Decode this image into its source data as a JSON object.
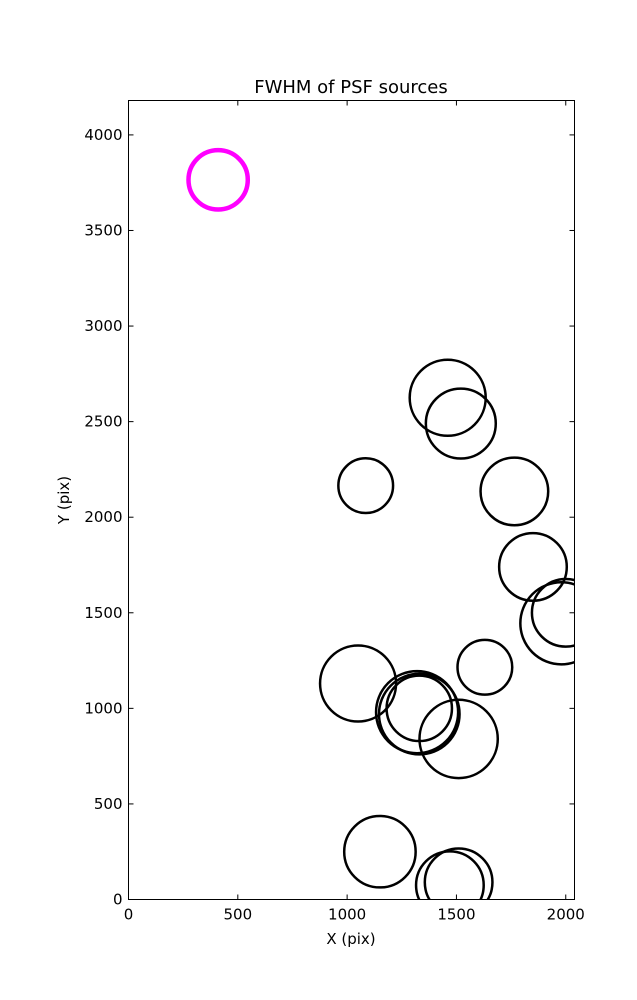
{
  "chart_data": {
    "type": "scatter",
    "title": "FWHM of PSF sources",
    "xlabel": "X (pix)",
    "ylabel": "Y (pix)",
    "xlim": [
      0,
      2040
    ],
    "ylim": [
      0,
      4180
    ],
    "xticks": [
      0,
      500,
      1000,
      1500,
      2000
    ],
    "yticks": [
      0,
      500,
      1000,
      1500,
      2000,
      2500,
      3000,
      3500,
      4000
    ],
    "grid": false,
    "sources": [
      {
        "x": 1460,
        "y": 2625,
        "size": 1.0
      },
      {
        "x": 1520,
        "y": 2490,
        "size": 0.92
      },
      {
        "x": 1085,
        "y": 2165,
        "size": 0.72
      },
      {
        "x": 1765,
        "y": 2135,
        "size": 0.89
      },
      {
        "x": 1850,
        "y": 1740,
        "size": 0.89
      },
      {
        "x": 2000,
        "y": 1500,
        "size": 0.89
      },
      {
        "x": 1980,
        "y": 1445,
        "size": 1.08
      },
      {
        "x": 1630,
        "y": 1215,
        "size": 0.72
      },
      {
        "x": 1050,
        "y": 1130,
        "size": 1.0
      },
      {
        "x": 1330,
        "y": 1000,
        "size": 0.86
      },
      {
        "x": 1320,
        "y": 980,
        "size": 1.08
      },
      {
        "x": 1330,
        "y": 970,
        "size": 1.06
      },
      {
        "x": 1510,
        "y": 840,
        "size": 1.03
      },
      {
        "x": 1150,
        "y": 250,
        "size": 0.94
      },
      {
        "x": 1510,
        "y": 90,
        "size": 0.89
      },
      {
        "x": 1470,
        "y": 75,
        "size": 0.89
      }
    ],
    "reference": {
      "x": 410,
      "y": 3765,
      "size": 0.78,
      "color": "#ff00ff"
    },
    "source_color": "#000000"
  }
}
